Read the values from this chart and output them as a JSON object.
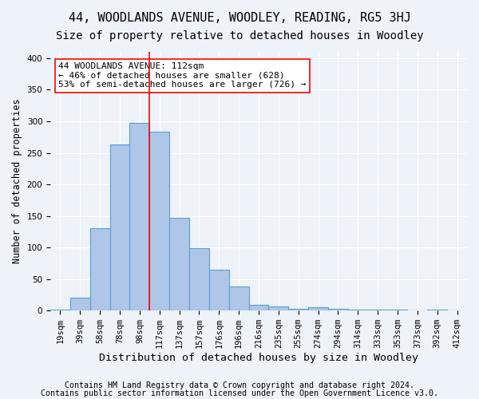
{
  "title1": "44, WOODLANDS AVENUE, WOODLEY, READING, RG5 3HJ",
  "title2": "Size of property relative to detached houses in Woodley",
  "xlabel": "Distribution of detached houses by size in Woodley",
  "ylabel": "Number of detached properties",
  "footer1": "Contains HM Land Registry data © Crown copyright and database right 2024.",
  "footer2": "Contains public sector information licensed under the Open Government Licence v3.0.",
  "categories": [
    "19sqm",
    "39sqm",
    "58sqm",
    "78sqm",
    "98sqm",
    "117sqm",
    "137sqm",
    "157sqm",
    "176sqm",
    "196sqm",
    "216sqm",
    "235sqm",
    "255sqm",
    "274sqm",
    "294sqm",
    "314sqm",
    "333sqm",
    "353sqm",
    "373sqm",
    "392sqm",
    "412sqm"
  ],
  "values": [
    2,
    20,
    130,
    263,
    298,
    284,
    147,
    99,
    65,
    38,
    9,
    6,
    3,
    5,
    3,
    2,
    2,
    1,
    0,
    1,
    0
  ],
  "bar_color": "#aec6e8",
  "bar_edge_color": "#5a9fd4",
  "vline_bin_index": 5,
  "annotation_text": "44 WOODLANDS AVENUE: 112sqm\n← 46% of detached houses are smaller (628)\n53% of semi-detached houses are larger (726) →",
  "annotation_box_color": "white",
  "annotation_box_edge": "red",
  "yticks": [
    0,
    50,
    100,
    150,
    200,
    250,
    300,
    350,
    400
  ],
  "ylim": [
    0,
    410
  ],
  "background_color": "#eef2f9",
  "grid_color": "white",
  "title1_fontsize": 11,
  "title2_fontsize": 10,
  "xlabel_fontsize": 9.5,
  "ylabel_fontsize": 8.5,
  "footer_fontsize": 7.2,
  "tick_fontsize": 7.5,
  "annotation_fontsize": 8
}
